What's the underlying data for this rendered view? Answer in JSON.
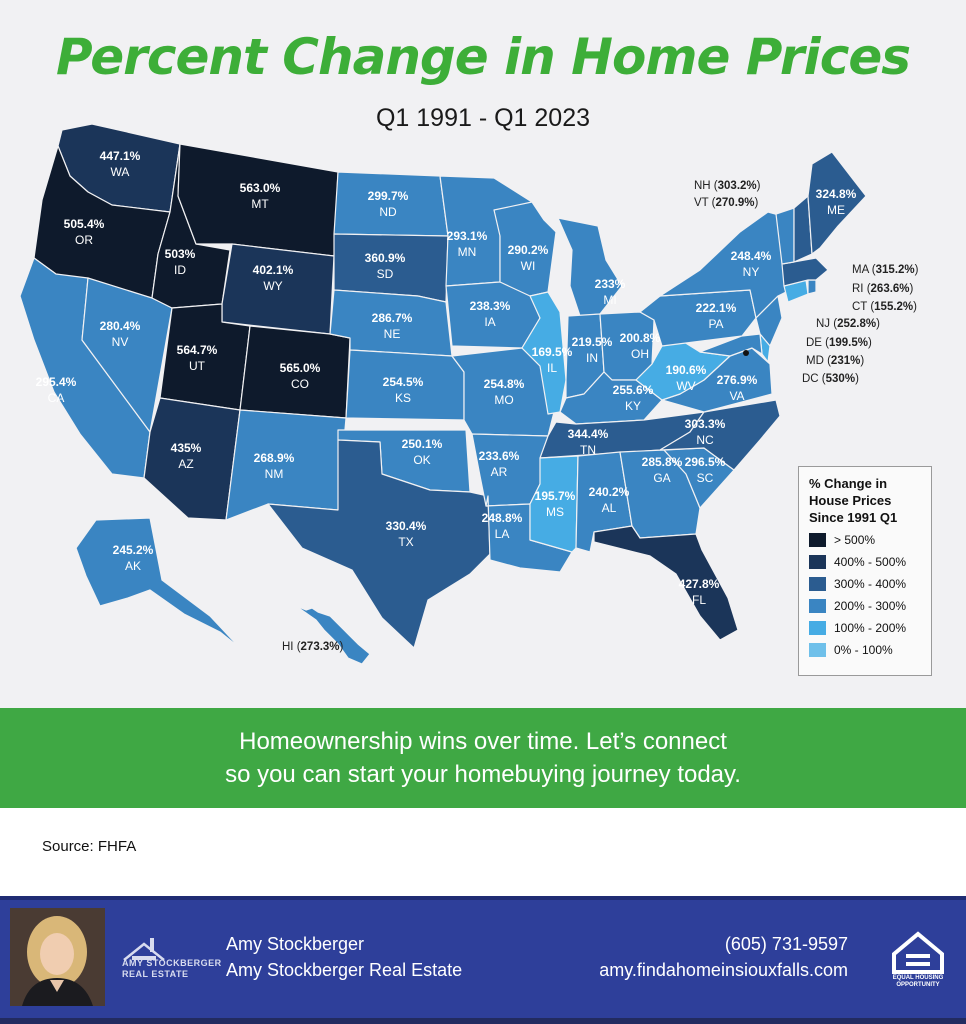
{
  "title": "Percent Change in Home Prices",
  "subtitle": "Q1 1991 - Q1 2023",
  "legend": {
    "title_lines": [
      "% Change in",
      "House Prices",
      "Since 1991 Q1"
    ],
    "items": [
      {
        "label": "> 500%",
        "color": "#0e1a2c"
      },
      {
        "label": "400% - 500%",
        "color": "#1b3559"
      },
      {
        "label": "300% - 400%",
        "color": "#2b5c90"
      },
      {
        "label": "200% - 300%",
        "color": "#3a85c2"
      },
      {
        "label": "100% - 200%",
        "color": "#46ace4"
      },
      {
        "label": "0% - 100%",
        "color": "#6fc0ea"
      }
    ]
  },
  "states": [
    {
      "abbr": "WA",
      "pct": "447.1%"
    },
    {
      "abbr": "OR",
      "pct": "505.4%"
    },
    {
      "abbr": "CA",
      "pct": "295.4%"
    },
    {
      "abbr": "NV",
      "pct": "280.4%"
    },
    {
      "abbr": "ID",
      "pct": "503%"
    },
    {
      "abbr": "MT",
      "pct": "563.0%"
    },
    {
      "abbr": "WY",
      "pct": "402.1%"
    },
    {
      "abbr": "UT",
      "pct": "564.7%"
    },
    {
      "abbr": "CO",
      "pct": "565.0%"
    },
    {
      "abbr": "AZ",
      "pct": "435%"
    },
    {
      "abbr": "NM",
      "pct": "268.9%"
    },
    {
      "abbr": "ND",
      "pct": "299.7%"
    },
    {
      "abbr": "SD",
      "pct": "360.9%"
    },
    {
      "abbr": "NE",
      "pct": "286.7%"
    },
    {
      "abbr": "KS",
      "pct": "254.5%"
    },
    {
      "abbr": "OK",
      "pct": "250.1%"
    },
    {
      "abbr": "TX",
      "pct": "330.4%"
    },
    {
      "abbr": "MN",
      "pct": "293.1%"
    },
    {
      "abbr": "IA",
      "pct": "238.3%"
    },
    {
      "abbr": "MO",
      "pct": "254.8%"
    },
    {
      "abbr": "AR",
      "pct": "233.6%"
    },
    {
      "abbr": "LA",
      "pct": "248.8%"
    },
    {
      "abbr": "WI",
      "pct": "290.2%"
    },
    {
      "abbr": "IL",
      "pct": "169.5%"
    },
    {
      "abbr": "MI",
      "pct": "233%"
    },
    {
      "abbr": "IN",
      "pct": "219.5%"
    },
    {
      "abbr": "OH",
      "pct": "200.8%"
    },
    {
      "abbr": "KY",
      "pct": "255.6%"
    },
    {
      "abbr": "TN",
      "pct": "344.4%"
    },
    {
      "abbr": "MS",
      "pct": "195.7%"
    },
    {
      "abbr": "AL",
      "pct": "240.2%"
    },
    {
      "abbr": "GA",
      "pct": "285.8%"
    },
    {
      "abbr": "FL",
      "pct": "427.8%"
    },
    {
      "abbr": "SC",
      "pct": "296.5%"
    },
    {
      "abbr": "NC",
      "pct": "303.3%"
    },
    {
      "abbr": "VA",
      "pct": "276.9%"
    },
    {
      "abbr": "WV",
      "pct": "190.6%"
    },
    {
      "abbr": "PA",
      "pct": "222.1%"
    },
    {
      "abbr": "NY",
      "pct": "248.4%"
    },
    {
      "abbr": "ME",
      "pct": "324.8%"
    },
    {
      "abbr": "AK",
      "pct": "245.2%"
    }
  ],
  "callouts": [
    {
      "abbr": "NH",
      "pct": "303.2%"
    },
    {
      "abbr": "VT",
      "pct": "270.9%"
    },
    {
      "abbr": "MA",
      "pct": "315.2%"
    },
    {
      "abbr": "RI",
      "pct": "263.6%"
    },
    {
      "abbr": "CT",
      "pct": "155.2%"
    },
    {
      "abbr": "NJ",
      "pct": "252.8%"
    },
    {
      "abbr": "DE",
      "pct": "199.5%"
    },
    {
      "abbr": "MD",
      "pct": "231%"
    },
    {
      "abbr": "DC",
      "pct": "530%"
    },
    {
      "abbr": "HI",
      "pct": "273.3%"
    }
  ],
  "banner": {
    "line1": "Homeownership wins over time. Let’s connect",
    "line2": "so you can start your homebuying journey today."
  },
  "source": "Source: FHFA",
  "footer": {
    "name": "Amy Stockberger",
    "company": "Amy Stockberger Real Estate",
    "phone": "(605) 731-9597",
    "website": "amy.findahomeinsiouxfalls.com",
    "logo_line1": "AMY STOCKBERGER",
    "logo_line2": "REAL ESTATE",
    "eho_text": "EQUAL HOUSING OPPORTUNITY"
  }
}
